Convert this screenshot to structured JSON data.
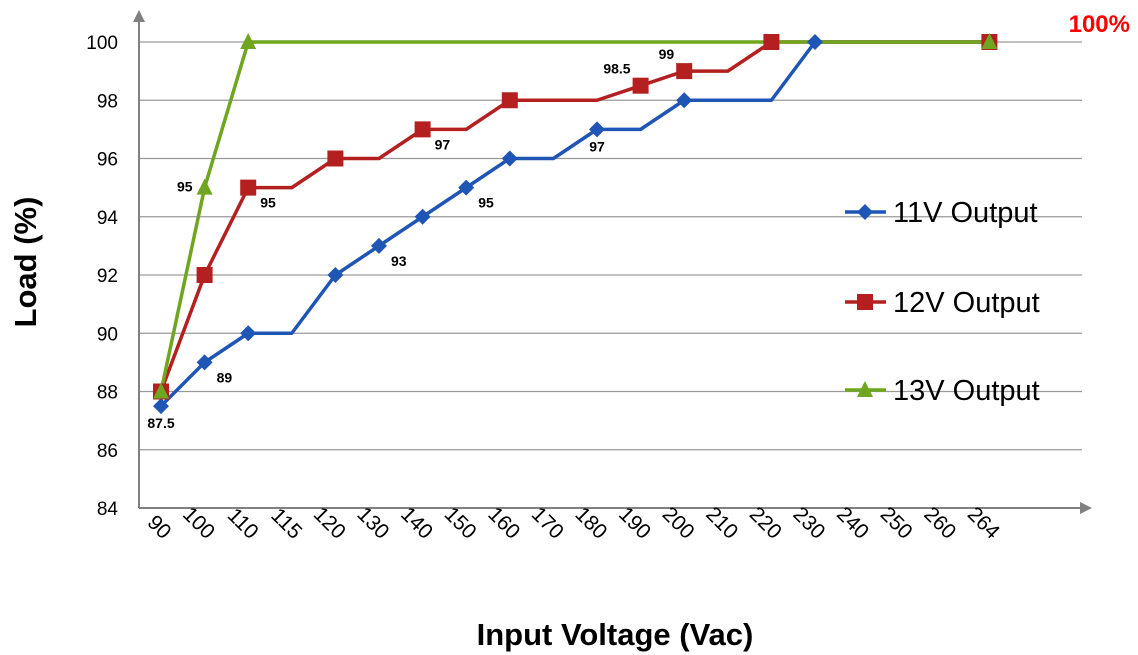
{
  "chart_data": {
    "type": "line",
    "title": "",
    "xlabel": "Input Voltage (Vac)",
    "ylabel": "Load (%)",
    "x_categories": [
      "90",
      "100",
      "110",
      "115",
      "120",
      "130",
      "140",
      "150",
      "160",
      "170",
      "180",
      "190",
      "200",
      "210",
      "220",
      "230",
      "240",
      "250",
      "260",
      "264"
    ],
    "y_ticks": [
      "84",
      "86",
      "88",
      "90",
      "92",
      "94",
      "96",
      "98",
      "100"
    ],
    "ylim": [
      84,
      100
    ],
    "grid": true,
    "legend_position": "right",
    "series": [
      {
        "name": "11V Output",
        "color": "#1F55B5",
        "marker": "diamond",
        "values": [
          87.5,
          89,
          90,
          90,
          92,
          93,
          94,
          95,
          96,
          96,
          97,
          97,
          98,
          98,
          98,
          100,
          100,
          100,
          100,
          100
        ],
        "marker_indices": [
          0,
          1,
          2,
          4,
          5,
          6,
          7,
          8,
          10,
          12,
          15,
          19
        ]
      },
      {
        "name": "12V Output",
        "color": "#B3201F",
        "marker": "square",
        "values": [
          88,
          92,
          95,
          95,
          96,
          96,
          97,
          97,
          98,
          98,
          98,
          98.5,
          99,
          99,
          100,
          100,
          100,
          100,
          100,
          100
        ],
        "marker_indices": [
          0,
          1,
          2,
          4,
          6,
          8,
          11,
          12,
          14,
          19
        ]
      },
      {
        "name": "13V Output",
        "color": "#6FA51F",
        "marker": "triangle",
        "values": [
          88,
          95,
          100,
          100,
          100,
          100,
          100,
          100,
          100,
          100,
          100,
          100,
          100,
          100,
          100,
          100,
          100,
          100,
          100,
          100
        ],
        "marker_indices": [
          0,
          1,
          2,
          19
        ]
      }
    ],
    "data_labels": [
      {
        "text": "87.5",
        "series": 0,
        "index": 0,
        "pos": "below"
      },
      {
        "text": "89",
        "series": 0,
        "index": 1,
        "pos": "below-right"
      },
      {
        "text": "93",
        "series": 0,
        "index": 5,
        "pos": "below-right"
      },
      {
        "text": "95",
        "series": 0,
        "index": 7,
        "pos": "below-right"
      },
      {
        "text": "97",
        "series": 0,
        "index": 10,
        "pos": "below"
      },
      {
        "text": "95",
        "series": 1,
        "index": 2,
        "pos": "below-right"
      },
      {
        "text": "97",
        "series": 1,
        "index": 6,
        "pos": "below-right"
      },
      {
        "text": "98.5",
        "series": 1,
        "index": 11,
        "pos": "above-left"
      },
      {
        "text": "99",
        "series": 1,
        "index": 12,
        "pos": "above-left"
      },
      {
        "text": "95",
        "series": 2,
        "index": 1,
        "pos": "left"
      }
    ],
    "annotation": {
      "text": "100%",
      "color": "#FF0000"
    }
  }
}
